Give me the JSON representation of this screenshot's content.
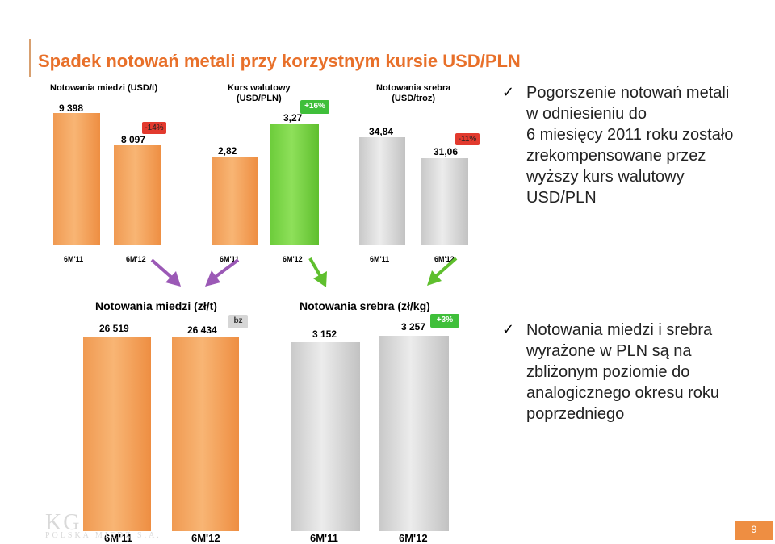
{
  "title": "Spadek notowań metali przy korzystnym kursie USD/PLN",
  "top_charts": {
    "copper": {
      "label": "Notowania miedzi (USD/t)",
      "v1": "9 398",
      "v2": "8 097",
      "change": "-14%"
    },
    "fx": {
      "label_line1": "Kurs walutowy",
      "label_line2": "(USD/PLN)",
      "v1": "2,82",
      "v2": "3,27",
      "change": "+16%"
    },
    "silver": {
      "label_line1": "Notowania srebra",
      "label_line2": "(USD/troz)",
      "v1": "34,84",
      "v2": "31,06",
      "change": "-11%"
    },
    "x_labels": [
      "6M'11",
      "6M'12",
      "6M'11",
      "6M'12",
      "6M'11",
      "6M'12"
    ]
  },
  "bottom_charts": {
    "copper": {
      "label": "Notowania miedzi (zł/t)",
      "v1": "26 519",
      "v2": "26 434",
      "change": "bz"
    },
    "silver": {
      "label": "Notowania srebra (zł/kg)",
      "v1": "3 152",
      "v2": "3 257",
      "change": "+3%"
    },
    "x_labels": [
      "6M'11",
      "6M'12",
      "6M'11",
      "6M'12"
    ]
  },
  "bullets": [
    {
      "check": "✓",
      "lines": [
        "Pogorszenie notowań metali",
        "w odniesieniu do",
        "6 miesięcy 2011 roku zostało",
        "zrekompensowane przez",
        "wyższy kurs walutowy",
        "USD/PLN"
      ]
    },
    {
      "check": "✓",
      "lines": [
        "Notowania miedzi i srebra",
        "wyrażone w PLN są na",
        "zbliżonym poziomie do",
        "analogicznego okresu roku",
        "poprzedniego"
      ]
    }
  ],
  "logo": {
    "big": "KG",
    "small": "POLSKA MIEDŹ S.A."
  },
  "page_number": "9",
  "colors": {
    "title": "#e8702a",
    "copper": "#f4a460",
    "fx": "#7fd84a",
    "silver": "#dcdcdc",
    "decrease": "#e23a2e",
    "increase": "#3fbf3a"
  },
  "chart_data": [
    {
      "type": "bar",
      "title": "Notowania miedzi (USD/t)",
      "categories": [
        "6M'11",
        "6M'12"
      ],
      "values": [
        9398,
        8097
      ]
    },
    {
      "type": "bar",
      "title": "Kurs walutowy (USD/PLN)",
      "categories": [
        "6M'11",
        "6M'12"
      ],
      "values": [
        2.82,
        3.27
      ]
    },
    {
      "type": "bar",
      "title": "Notowania srebra (USD/troz)",
      "categories": [
        "6M'11",
        "6M'12"
      ],
      "values": [
        34.84,
        31.06
      ]
    },
    {
      "type": "bar",
      "title": "Notowania miedzi (zł/t)",
      "categories": [
        "6M'11",
        "6M'12"
      ],
      "values": [
        26519,
        26434
      ]
    },
    {
      "type": "bar",
      "title": "Notowania srebra (zł/kg)",
      "categories": [
        "6M'11",
        "6M'12"
      ],
      "values": [
        3152,
        3257
      ]
    }
  ]
}
